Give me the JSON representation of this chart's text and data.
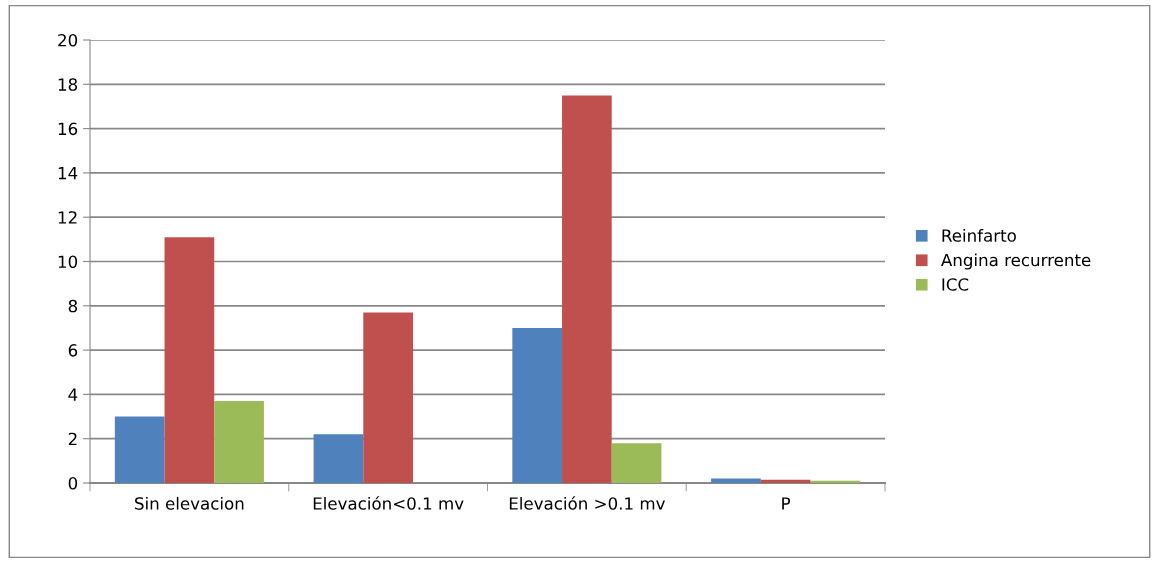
{
  "chart_data": {
    "type": "bar",
    "categories": [
      "Sin elevacion",
      "Elevación<0.1 mv",
      "Elevación >0.1 mv",
      "P"
    ],
    "series": [
      {
        "name": "Reinfarto",
        "color": "#4f81bd",
        "values": [
          3.0,
          2.2,
          7.0,
          0.2
        ]
      },
      {
        "name": "Angina recurrente",
        "color": "#c0504d",
        "values": [
          11.1,
          7.7,
          17.5,
          0.15
        ]
      },
      {
        "name": "ICC",
        "color": "#9bbb59",
        "values": [
          3.7,
          0,
          1.8,
          0.1
        ]
      }
    ],
    "ylim": [
      0,
      20
    ],
    "yticks": [
      0,
      2,
      4,
      6,
      8,
      10,
      12,
      14,
      16,
      18,
      20
    ],
    "grid": "y",
    "legend": "right"
  }
}
